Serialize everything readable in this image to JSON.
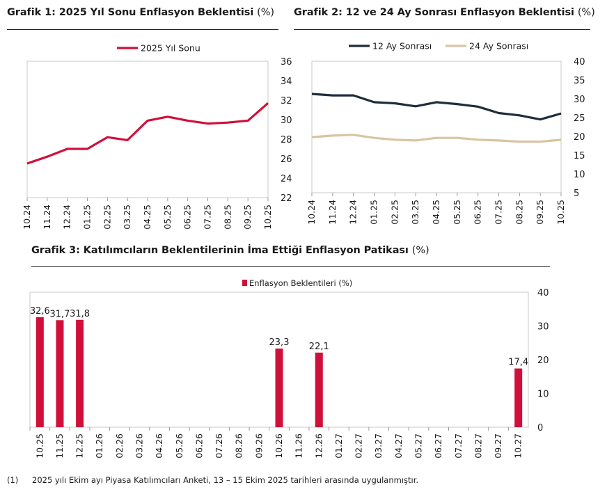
{
  "footnote": {
    "marker": "(1)",
    "text": "2025 yılı Ekim ayı Piyasa Katılımcıları Anketi, 13 – 15 Ekim 2025 tarihleri arasında uygulanmıştır."
  },
  "chart_data": [
    {
      "id": "chart1",
      "type": "line",
      "title": "Grafik 1: 2025 Yıl Sonu Enflasyon Beklentisi",
      "unit": "(%)",
      "categories": [
        "10.24",
        "11.24",
        "12.24",
        "01.25",
        "02.25",
        "03.25",
        "04.25",
        "05.25",
        "06.25",
        "07.25",
        "08.25",
        "09.25",
        "10.25"
      ],
      "series": [
        {
          "name": "2025 Yıl Sonu",
          "color": "#d0103a",
          "values": [
            25.5,
            26.2,
            27.0,
            27.0,
            28.2,
            27.9,
            29.9,
            30.3,
            29.9,
            29.6,
            29.7,
            29.9,
            31.7
          ]
        }
      ],
      "ylim": [
        22,
        36
      ],
      "yticks": [
        22,
        24,
        26,
        28,
        30,
        32,
        34,
        36
      ],
      "legend": "top-center",
      "xlabel": "",
      "ylabel": ""
    },
    {
      "id": "chart2",
      "type": "line",
      "title": "Grafik 2: 12 ve 24 Ay Sonrası Enflasyon Beklentisi",
      "unit": "(%)",
      "categories": [
        "10.24",
        "11.24",
        "12.24",
        "01.25",
        "02.25",
        "03.25",
        "04.25",
        "05.25",
        "06.25",
        "07.25",
        "08.25",
        "09.25",
        "10.25"
      ],
      "series": [
        {
          "name": "12 Ay Sonrası",
          "color": "#1e2d3b",
          "values": [
            31.3,
            30.9,
            30.9,
            29.1,
            28.8,
            28.0,
            29.1,
            28.6,
            27.9,
            26.2,
            25.6,
            24.5,
            26.1
          ]
        },
        {
          "name": "24 Ay Sonrası",
          "color": "#d9c4a3",
          "values": [
            19.8,
            20.2,
            20.4,
            19.6,
            19.1,
            18.9,
            19.6,
            19.6,
            19.1,
            18.9,
            18.6,
            18.6,
            19.1
          ]
        }
      ],
      "ylim": [
        5,
        40
      ],
      "yticks": [
        5,
        10,
        15,
        20,
        25,
        30,
        35,
        40
      ],
      "legend": "top-center",
      "xlabel": "",
      "ylabel": ""
    },
    {
      "id": "chart3",
      "type": "bar",
      "title": "Grafik 3: Katılımcıların Beklentilerinin İma Ettiği Enflasyon Patikası",
      "unit": "(%)",
      "categories": [
        "10.25",
        "11.25",
        "12.25",
        "01.26",
        "02.26",
        "03.26",
        "04.26",
        "05.26",
        "06.26",
        "07.26",
        "08.26",
        "09.26",
        "10.26",
        "11.26",
        "12.26",
        "01.27",
        "02.27",
        "03.27",
        "04.27",
        "05.27",
        "06.27",
        "07.27",
        "08.27",
        "09.27",
        "10.27"
      ],
      "series": [
        {
          "name": "Enflasyon Beklentileri (%)",
          "color": "#d0103a",
          "values": [
            32.6,
            31.7,
            31.8,
            null,
            null,
            null,
            null,
            null,
            null,
            null,
            null,
            null,
            23.3,
            null,
            22.1,
            null,
            null,
            null,
            null,
            null,
            null,
            null,
            null,
            null,
            17.4
          ],
          "labels": [
            "32,6",
            "31,7",
            "31,8",
            "",
            "",
            "",
            "",
            "",
            "",
            "",
            "",
            "",
            "23,3",
            "",
            "22,1",
            "",
            "",
            "",
            "",
            "",
            "",
            "",
            "",
            "",
            "17,4"
          ]
        }
      ],
      "ylim": [
        0,
        40
      ],
      "yticks": [
        0,
        10,
        20,
        30,
        40
      ],
      "legend": "top-center",
      "xlabel": "",
      "ylabel": ""
    }
  ]
}
